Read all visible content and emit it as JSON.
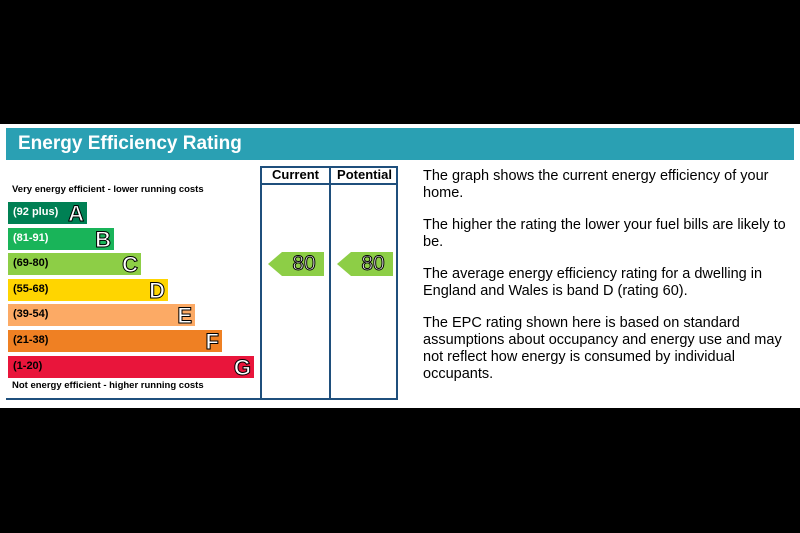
{
  "header": {
    "title": "Energy Efficiency Rating"
  },
  "chart_data": {
    "type": "bar",
    "columns": {
      "current": "Current",
      "potential": "Potential"
    },
    "top_caption": "Very energy efficient - lower running costs",
    "bottom_caption": "Not energy efficient - higher running costs",
    "bands": [
      {
        "range": "(92 plus)",
        "letter": "A",
        "color": "#008054",
        "text_color": "#ffffff",
        "width_fraction": 0.32
      },
      {
        "range": "(81-91)",
        "letter": "B",
        "color": "#19b459",
        "text_color": "#ffffff",
        "width_fraction": 0.43
      },
      {
        "range": "(69-80)",
        "letter": "C",
        "color": "#8dce46",
        "text_color": "#000000",
        "width_fraction": 0.54
      },
      {
        "range": "(55-68)",
        "letter": "D",
        "color": "#ffd500",
        "text_color": "#000000",
        "width_fraction": 0.65
      },
      {
        "range": "(39-54)",
        "letter": "E",
        "color": "#fcaa65",
        "text_color": "#000000",
        "width_fraction": 0.76
      },
      {
        "range": "(21-38)",
        "letter": "F",
        "color": "#ef8023",
        "text_color": "#000000",
        "width_fraction": 0.87
      },
      {
        "range": "(1-20)",
        "letter": "G",
        "color": "#e9153b",
        "text_color": "#000000",
        "width_fraction": 1.0
      }
    ],
    "current": 80,
    "potential": 80,
    "rating_color": "#8dce46"
  },
  "description": [
    "The graph shows the current energy efficiency of your home.",
    "The higher the rating the lower your fuel bills are likely to be.",
    "The average energy efficiency rating for a dwelling in England and Wales is band D (rating 60).",
    "The EPC rating shown here is based on standard assumptions about occupancy and energy use and may not reflect how energy is consumed by individual occupants."
  ]
}
